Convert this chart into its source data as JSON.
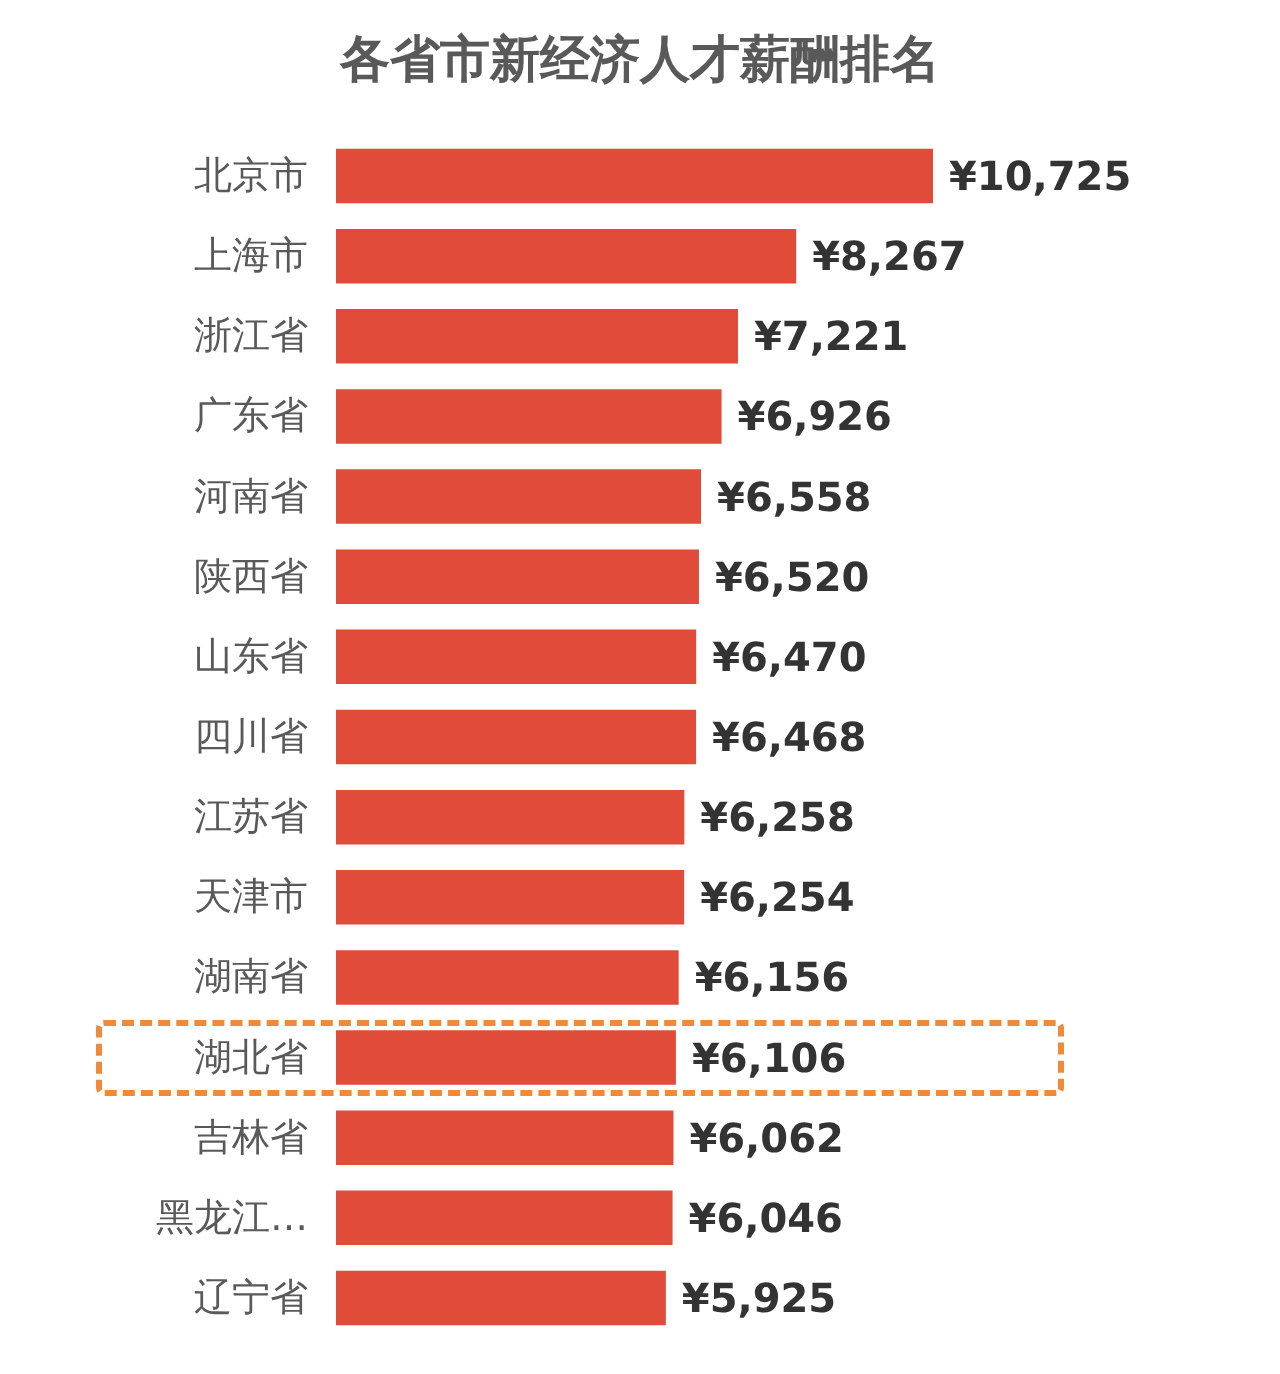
{
  "chart_data": {
    "type": "bar",
    "orientation": "horizontal",
    "title": "各省市新经济人才薪酬排名",
    "categories": [
      "北京市",
      "上海市",
      "浙江省",
      "广东省",
      "河南省",
      "陕西省",
      "山东省",
      "四川省",
      "江苏省",
      "天津市",
      "湖南省",
      "湖北省",
      "吉林省",
      "黑龙江…",
      "辽宁省"
    ],
    "values": [
      10725,
      8267,
      7221,
      6926,
      6558,
      6520,
      6470,
      6468,
      6258,
      6254,
      6156,
      6106,
      6062,
      6046,
      5925
    ],
    "value_labels": [
      "¥10,725",
      "¥8,267",
      "¥7,221",
      "¥6,926",
      "¥6,558",
      "¥6,520",
      "¥6,470",
      "¥6,468",
      "¥6,258",
      "¥6,254",
      "¥6,156",
      "¥6,106",
      "¥6,062",
      "¥6,046",
      "¥5,925"
    ],
    "color": "#e04b3a",
    "tick_labels": "y"
  }
}
